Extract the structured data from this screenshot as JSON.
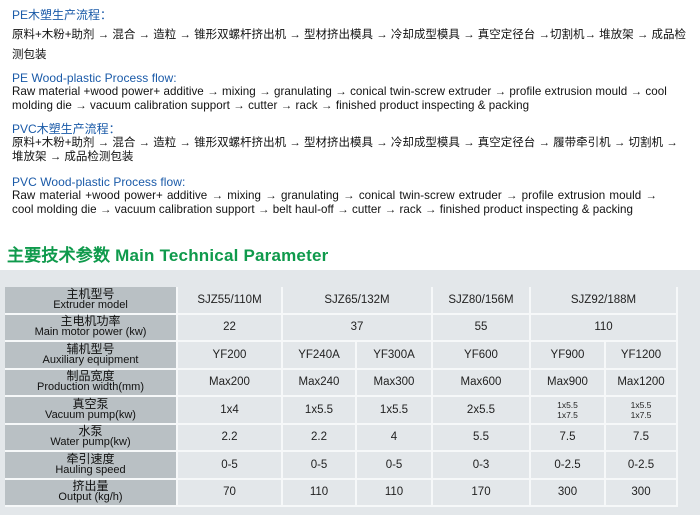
{
  "pe_cn": {
    "heading": "PE木塑生产流程：",
    "text": "原料+木粉+助剂 → 混合 → 造粒 → 锥形双螺杆挤出机 → 型材挤出模具 → 冷却成型模具 → 真空定径台 →切割机→ 堆放架 → 成品检测包装"
  },
  "pe_en": {
    "heading": "PE Wood-plastic Process flow:",
    "text": "Raw material +wood power+ additive → mixing → granulating → conical twin-screw extruder → profile extrusion mould → cool molding die → vacuum calibration support → cutter → rack → finished product inspecting & packing"
  },
  "pvc_cn": {
    "heading": "PVC木塑生产流程：",
    "text": "原料+木粉+助剂 → 混合 → 造粒 → 锥形双螺杆挤出机 → 型材挤出模具 → 冷却成型模具 → 真空定径台 → 履带牵引机 → 切割机 → 堆放架 → 成品检测包装"
  },
  "pvc_en": {
    "heading": "PVC Wood-plastic Process flow:",
    "text": "Raw material +wood power+ additive → mixing → granulating → conical twin-screw extruder → profile extrusion mould → cool molding die → vacuum calibration support → belt haul-off → cutter → rack → finished product inspecting & packing"
  },
  "section_title": "主要技术参数 Main Technical Parameter",
  "colors": {
    "heading_blue": "#1a5aa8",
    "title_green": "#0f9a4c",
    "label_gray": "#b9c0c4",
    "panel_gray": "#e3e7ea"
  },
  "table": {
    "rows": [
      {
        "cn": "主机型号",
        "en": "Extruder model",
        "cells": [
          {
            "v": "SJZ55/110M",
            "span": 1
          },
          {
            "v": "SJZ65/132M",
            "span": 2
          },
          {
            "v": "SJZ80/156M",
            "span": 1
          },
          {
            "v": "SJZ92/188M",
            "span": 2
          }
        ]
      },
      {
        "cn": "主电机功率",
        "en": "Main motor power (kw)",
        "cells": [
          {
            "v": "22",
            "span": 1
          },
          {
            "v": "37",
            "span": 2
          },
          {
            "v": "55",
            "span": 1
          },
          {
            "v": "110",
            "span": 2
          }
        ]
      },
      {
        "cn": "辅机型号",
        "en": "Auxiliary equipment",
        "cells": [
          {
            "v": "YF200"
          },
          {
            "v": "YF240A"
          },
          {
            "v": "YF300A"
          },
          {
            "v": "YF600"
          },
          {
            "v": "YF900"
          },
          {
            "v": "YF1200"
          }
        ]
      },
      {
        "cn": "制品宽度",
        "en": "Production width(mm)",
        "cells": [
          {
            "v": "Max200"
          },
          {
            "v": "Max240"
          },
          {
            "v": "Max300"
          },
          {
            "v": "Max600"
          },
          {
            "v": "Max900"
          },
          {
            "v": "Max1200"
          }
        ]
      },
      {
        "cn": "真空泵",
        "en": "Vacuum pump(kw)",
        "cells": [
          {
            "v": "1x4"
          },
          {
            "v": "1x5.5"
          },
          {
            "v": "1x5.5"
          },
          {
            "v": "2x5.5"
          },
          {
            "v": "1x5.5\n1x7.5",
            "small": true
          },
          {
            "v": "1x5.5\n1x7.5",
            "small": true
          }
        ]
      },
      {
        "cn": "水泵",
        "en": "Water pump(kw)",
        "cells": [
          {
            "v": "2.2"
          },
          {
            "v": "2.2"
          },
          {
            "v": "4"
          },
          {
            "v": "5.5"
          },
          {
            "v": "7.5"
          },
          {
            "v": "7.5"
          }
        ]
      },
      {
        "cn": "牵引速度",
        "en": "Hauling speed",
        "cells": [
          {
            "v": "0-5"
          },
          {
            "v": "0-5"
          },
          {
            "v": "0-5"
          },
          {
            "v": "0-3"
          },
          {
            "v": "0-2.5"
          },
          {
            "v": "0-2.5"
          }
        ]
      },
      {
        "cn": "挤出量",
        "en": "Output (kg/h)",
        "cells": [
          {
            "v": "70"
          },
          {
            "v": "110"
          },
          {
            "v": "110"
          },
          {
            "v": "170"
          },
          {
            "v": "300"
          },
          {
            "v": "300"
          }
        ]
      }
    ]
  }
}
